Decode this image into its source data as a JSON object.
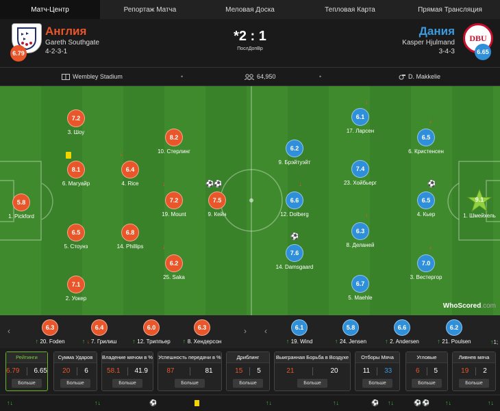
{
  "tabs": [
    "Матч-Центр",
    "Репортаж Матча",
    "Меловая Доска",
    "Тепловая Карта",
    "Прямая Трансляция"
  ],
  "home": {
    "name": "Англия",
    "manager": "Gareth Southgate",
    "formation": "4-2-3-1",
    "rating": "6.79",
    "color": "#e8562a"
  },
  "away": {
    "name": "Дания",
    "manager": "Kasper Hjulmand",
    "formation": "3-4-3",
    "rating": "6.65",
    "color": "#2f8fd8",
    "crest_text": "DBU"
  },
  "score": "*2 : 1",
  "status": "ПослДопВр",
  "info": {
    "stadium": "Wembley Stadium",
    "attendance": "64,950",
    "referee": "D. Makkelie"
  },
  "home_players": [
    {
      "rating": "5.8",
      "name": "1. Pickford"
    },
    {
      "rating": "7.2",
      "name": "3. Шоу"
    },
    {
      "rating": "8.1",
      "name": "6. Магуайр"
    },
    {
      "rating": "6.5",
      "name": "5. Стоунз"
    },
    {
      "rating": "7.1",
      "name": "2. Уокер"
    },
    {
      "rating": "6.4",
      "name": "4. Rice"
    },
    {
      "rating": "6.8",
      "name": "14. Phillips"
    },
    {
      "rating": "8.2",
      "name": "10. Стерлинг"
    },
    {
      "rating": "7.2",
      "name": "19. Mount"
    },
    {
      "rating": "6.2",
      "name": "25. Saka"
    },
    {
      "rating": "7.5",
      "name": "9. Кейн"
    }
  ],
  "away_players": [
    {
      "rating": "6.2",
      "name": "9. Брэйтуэйт"
    },
    {
      "rating": "6.6",
      "name": "12. Dolberg"
    },
    {
      "rating": "7.6",
      "name": "14. Damsgaard"
    },
    {
      "rating": "6.1",
      "name": "17. Ларсен"
    },
    {
      "rating": "7.4",
      "name": "23. Хойбьерг"
    },
    {
      "rating": "6.3",
      "name": "8. Делaней"
    },
    {
      "rating": "6.7",
      "name": "5. Maehle"
    },
    {
      "rating": "6.5",
      "name": "6. Кристенсен"
    },
    {
      "rating": "6.5",
      "name": "4. Кьер"
    },
    {
      "rating": "7.0",
      "name": "3. Вестергор"
    },
    {
      "rating": "9.1",
      "name": "1. Шмейхель"
    }
  ],
  "home_subs": [
    {
      "rating": "6.3",
      "name": "20. Foden"
    },
    {
      "rating": "6.4",
      "name": "7. Грилиш"
    },
    {
      "rating": "6.0",
      "name": "12. Триппьер"
    },
    {
      "rating": "6.3",
      "name": "8. Хендерсон"
    }
  ],
  "away_subs": [
    {
      "rating": "6.1",
      "name": "19. Wind"
    },
    {
      "rating": "5.8",
      "name": "24. Jensen"
    },
    {
      "rating": "6.6",
      "name": "2. Andersen"
    },
    {
      "rating": "6.2",
      "name": "21. Poulsen"
    }
  ],
  "partial_sub_label": "1;",
  "watermark": {
    "brand": "WhoScored",
    "suffix": ".com"
  },
  "stats": [
    {
      "title": "Рейтинги",
      "home": "6.79",
      "away": "6.65",
      "more": "Больше"
    },
    {
      "title": "Сумма Ударов",
      "home": "20",
      "away": "6",
      "more": "Больше"
    },
    {
      "title": "Владение мячом в %",
      "home": "58.1",
      "away": "41.9",
      "more": "Больше"
    },
    {
      "title": "Успешность передачи в %",
      "home": "87",
      "away": "81",
      "more": "Больше"
    },
    {
      "title": "Дриблинг",
      "home": "15",
      "away": "5",
      "more": "Больше"
    },
    {
      "title": "Выигранная Борьба в Воздухе",
      "home": "21",
      "away": "20",
      "more": "Больше"
    },
    {
      "title": "Отборы Мяча",
      "home": "11",
      "away": "33",
      "more": "Больше"
    },
    {
      "title": "Угловые",
      "home": "6",
      "away": "5",
      "more": "Больше"
    },
    {
      "title": "Ливнев мяча",
      "home": "19",
      "away": "2",
      "more": "Больше"
    }
  ]
}
